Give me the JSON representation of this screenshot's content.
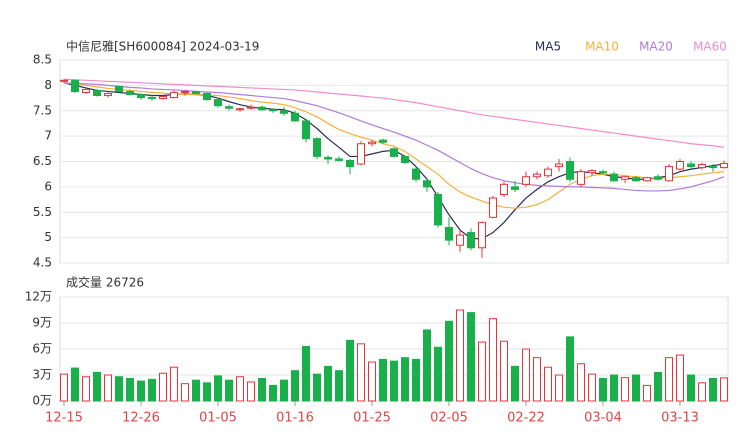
{
  "chart_data": [
    {
      "type": "candlestick",
      "title": "中信尼雅[SH600084] 2024-03-19",
      "legend": "top-right",
      "up_color": "#e8333a",
      "down_color": "#19b04b",
      "categories": [
        "12-15",
        null,
        null,
        null,
        null,
        null,
        null,
        "12-26",
        null,
        null,
        null,
        null,
        null,
        null,
        "01-05",
        null,
        null,
        null,
        null,
        null,
        null,
        "01-16",
        null,
        null,
        null,
        null,
        null,
        null,
        "01-25",
        null,
        null,
        null,
        null,
        null,
        null,
        "02-05",
        null,
        null,
        null,
        null,
        null,
        null,
        "02-22",
        null,
        null,
        null,
        null,
        null,
        null,
        "03-04",
        null,
        null,
        null,
        null,
        null,
        null,
        "03-13",
        null,
        null,
        null,
        null
      ],
      "ohlc": [
        [
          8.08,
          8.12,
          8.05,
          8.1
        ],
        [
          8.1,
          8.11,
          7.85,
          7.88
        ],
        [
          7.86,
          7.95,
          7.83,
          7.92
        ],
        [
          7.9,
          7.93,
          7.78,
          7.8
        ],
        [
          7.8,
          7.86,
          7.76,
          7.84
        ],
        [
          7.98,
          8.0,
          7.86,
          7.88
        ],
        [
          7.88,
          7.92,
          7.8,
          7.82
        ],
        [
          7.82,
          7.84,
          7.72,
          7.76
        ],
        [
          7.76,
          7.8,
          7.7,
          7.74
        ],
        [
          7.74,
          7.8,
          7.72,
          7.78
        ],
        [
          7.76,
          7.9,
          7.74,
          7.86
        ],
        [
          7.86,
          7.9,
          7.8,
          7.88
        ],
        [
          7.88,
          7.9,
          7.82,
          7.84
        ],
        [
          7.84,
          7.86,
          7.7,
          7.72
        ],
        [
          7.72,
          7.76,
          7.56,
          7.6
        ],
        [
          7.58,
          7.62,
          7.5,
          7.55
        ],
        [
          7.52,
          7.56,
          7.48,
          7.54
        ],
        [
          7.55,
          7.62,
          7.52,
          7.57
        ],
        [
          7.57,
          7.6,
          7.5,
          7.52
        ],
        [
          7.52,
          7.55,
          7.46,
          7.5
        ],
        [
          7.5,
          7.58,
          7.4,
          7.45
        ],
        [
          7.45,
          7.5,
          7.28,
          7.3
        ],
        [
          7.3,
          7.32,
          6.88,
          6.95
        ],
        [
          6.95,
          6.98,
          6.55,
          6.6
        ],
        [
          6.58,
          6.62,
          6.45,
          6.55
        ],
        [
          6.55,
          6.6,
          6.5,
          6.52
        ],
        [
          6.52,
          6.55,
          6.25,
          6.4
        ],
        [
          6.45,
          6.9,
          6.42,
          6.85
        ],
        [
          6.85,
          6.92,
          6.8,
          6.88
        ],
        [
          6.92,
          6.95,
          6.85,
          6.88
        ],
        [
          6.75,
          6.78,
          6.58,
          6.6
        ],
        [
          6.6,
          6.62,
          6.45,
          6.48
        ],
        [
          6.35,
          6.4,
          6.1,
          6.15
        ],
        [
          6.12,
          6.15,
          5.9,
          6.0
        ],
        [
          5.85,
          5.9,
          5.2,
          5.25
        ],
        [
          5.2,
          5.4,
          4.85,
          4.95
        ],
        [
          4.85,
          5.15,
          4.72,
          5.05
        ],
        [
          5.1,
          5.18,
          4.75,
          4.8
        ],
        [
          4.8,
          5.32,
          4.6,
          5.3
        ],
        [
          5.4,
          5.82,
          5.38,
          5.78
        ],
        [
          5.85,
          6.1,
          5.8,
          6.05
        ],
        [
          6.0,
          6.12,
          5.9,
          5.95
        ],
        [
          6.05,
          6.3,
          6.0,
          6.2
        ],
        [
          6.2,
          6.3,
          6.15,
          6.25
        ],
        [
          6.22,
          6.4,
          6.18,
          6.35
        ],
        [
          6.4,
          6.55,
          6.3,
          6.45
        ],
        [
          6.5,
          6.58,
          6.1,
          6.15
        ],
        [
          6.05,
          6.35,
          6.0,
          6.3
        ],
        [
          6.28,
          6.35,
          6.22,
          6.32
        ],
        [
          6.3,
          6.34,
          6.25,
          6.28
        ],
        [
          6.25,
          6.3,
          6.1,
          6.12
        ],
        [
          6.15,
          6.22,
          6.08,
          6.2
        ],
        [
          6.18,
          6.22,
          6.1,
          6.12
        ],
        [
          6.12,
          6.2,
          6.1,
          6.18
        ],
        [
          6.2,
          6.25,
          6.12,
          6.15
        ],
        [
          6.12,
          6.45,
          6.1,
          6.4
        ],
        [
          6.35,
          6.55,
          6.32,
          6.5
        ],
        [
          6.45,
          6.5,
          6.35,
          6.4
        ],
        [
          6.38,
          6.48,
          6.34,
          6.44
        ],
        [
          6.4,
          6.45,
          6.3,
          6.38
        ],
        [
          6.38,
          6.52,
          6.36,
          6.46
        ]
      ],
      "series": [
        {
          "name": "MA5",
          "color": "#2b2b55",
          "values": [
            8.05,
            8.0,
            7.95,
            7.9,
            7.88,
            7.86,
            7.84,
            7.82,
            7.8,
            7.8,
            7.82,
            7.83,
            7.82,
            7.8,
            7.75,
            7.68,
            7.62,
            7.57,
            7.55,
            7.53,
            7.52,
            7.45,
            7.32,
            7.15,
            6.95,
            6.78,
            6.6,
            6.6,
            6.65,
            6.7,
            6.72,
            6.6,
            6.4,
            6.15,
            5.8,
            5.45,
            5.15,
            4.98,
            4.98,
            5.1,
            5.3,
            5.55,
            5.78,
            5.95,
            6.1,
            6.2,
            6.28,
            6.3,
            6.28,
            6.25,
            6.2,
            6.18,
            6.15,
            6.15,
            6.18,
            6.22,
            6.3,
            6.35,
            6.38,
            6.42,
            6.45
          ]
        },
        {
          "name": "MA10",
          "color": "#f5b03c",
          "values": [
            8.05,
            8.03,
            8.0,
            7.97,
            7.94,
            7.92,
            7.9,
            7.88,
            7.86,
            7.85,
            7.83,
            7.82,
            7.82,
            7.81,
            7.8,
            7.77,
            7.74,
            7.7,
            7.67,
            7.65,
            7.62,
            7.56,
            7.48,
            7.38,
            7.25,
            7.13,
            7.05,
            6.98,
            6.92,
            6.85,
            6.8,
            6.7,
            6.55,
            6.4,
            6.25,
            6.05,
            5.9,
            5.8,
            5.72,
            5.65,
            5.6,
            5.58,
            5.6,
            5.65,
            5.75,
            5.9,
            6.05,
            6.15,
            6.22,
            6.25,
            6.25,
            6.22,
            6.2,
            6.18,
            6.17,
            6.18,
            6.2,
            6.22,
            6.25,
            6.28,
            6.3
          ]
        },
        {
          "name": "MA20",
          "color": "#b07cdb",
          "values": [
            8.05,
            8.04,
            8.03,
            8.02,
            8.0,
            7.98,
            7.96,
            7.95,
            7.93,
            7.92,
            7.91,
            7.9,
            7.88,
            7.87,
            7.86,
            7.84,
            7.82,
            7.8,
            7.78,
            7.76,
            7.74,
            7.7,
            7.65,
            7.6,
            7.53,
            7.46,
            7.38,
            7.3,
            7.22,
            7.15,
            7.08,
            7.0,
            6.92,
            6.82,
            6.72,
            6.6,
            6.48,
            6.36,
            6.26,
            6.18,
            6.12,
            6.08,
            6.05,
            6.03,
            6.02,
            6.01,
            6.0,
            6.0,
            5.99,
            5.98,
            5.97,
            5.95,
            5.93,
            5.92,
            5.92,
            5.93,
            5.96,
            6.0,
            6.06,
            6.12,
            6.2
          ]
        },
        {
          "name": "MA60",
          "color": "#f08ccc",
          "values": [
            8.12,
            8.11,
            8.1,
            8.09,
            8.08,
            8.07,
            8.06,
            8.05,
            8.04,
            8.03,
            8.02,
            8.01,
            8.0,
            7.99,
            7.98,
            7.97,
            7.96,
            7.95,
            7.94,
            7.93,
            7.92,
            7.91,
            7.89,
            7.87,
            7.85,
            7.83,
            7.81,
            7.79,
            7.77,
            7.75,
            7.72,
            7.69,
            7.66,
            7.62,
            7.58,
            7.54,
            7.5,
            7.46,
            7.42,
            7.39,
            7.36,
            7.33,
            7.3,
            7.27,
            7.24,
            7.21,
            7.18,
            7.15,
            7.12,
            7.09,
            7.06,
            7.03,
            7.0,
            6.97,
            6.94,
            6.91,
            6.88,
            6.85,
            6.83,
            6.81,
            6.78
          ]
        }
      ],
      "ylim": [
        4.5,
        8.5
      ],
      "yticks": [
        8.5,
        8,
        7.5,
        7,
        6.5,
        6,
        5.5,
        5,
        4.5
      ],
      "grid": true
    },
    {
      "type": "bar",
      "title": "成交量 26726",
      "values": [
        3.1,
        3.8,
        2.8,
        3.3,
        3.0,
        2.8,
        2.6,
        2.3,
        2.5,
        3.2,
        3.9,
        2.0,
        2.4,
        2.1,
        2.9,
        2.4,
        2.8,
        2.2,
        2.6,
        1.8,
        2.4,
        3.5,
        6.3,
        3.1,
        4.0,
        3.5,
        7.0,
        6.6,
        4.5,
        4.8,
        4.6,
        5.0,
        4.8,
        8.2,
        6.2,
        9.2,
        10.5,
        10.2,
        6.8,
        9.5,
        6.9,
        4.0,
        6.0,
        5.0,
        3.9,
        3.0,
        7.4,
        4.3,
        3.1,
        2.6,
        3.0,
        2.7,
        3.0,
        1.8,
        3.3,
        5.0,
        5.3,
        3.0,
        2.1,
        2.6,
        2.6726
      ],
      "ylim": [
        0,
        12
      ],
      "yticks": [
        {
          "value": 12,
          "label": "12万"
        },
        {
          "value": 9,
          "label": "9万"
        },
        {
          "value": 6,
          "label": "6万"
        },
        {
          "value": 3,
          "label": "3万"
        },
        {
          "value": 0,
          "label": "0万"
        }
      ],
      "grid": true
    }
  ]
}
